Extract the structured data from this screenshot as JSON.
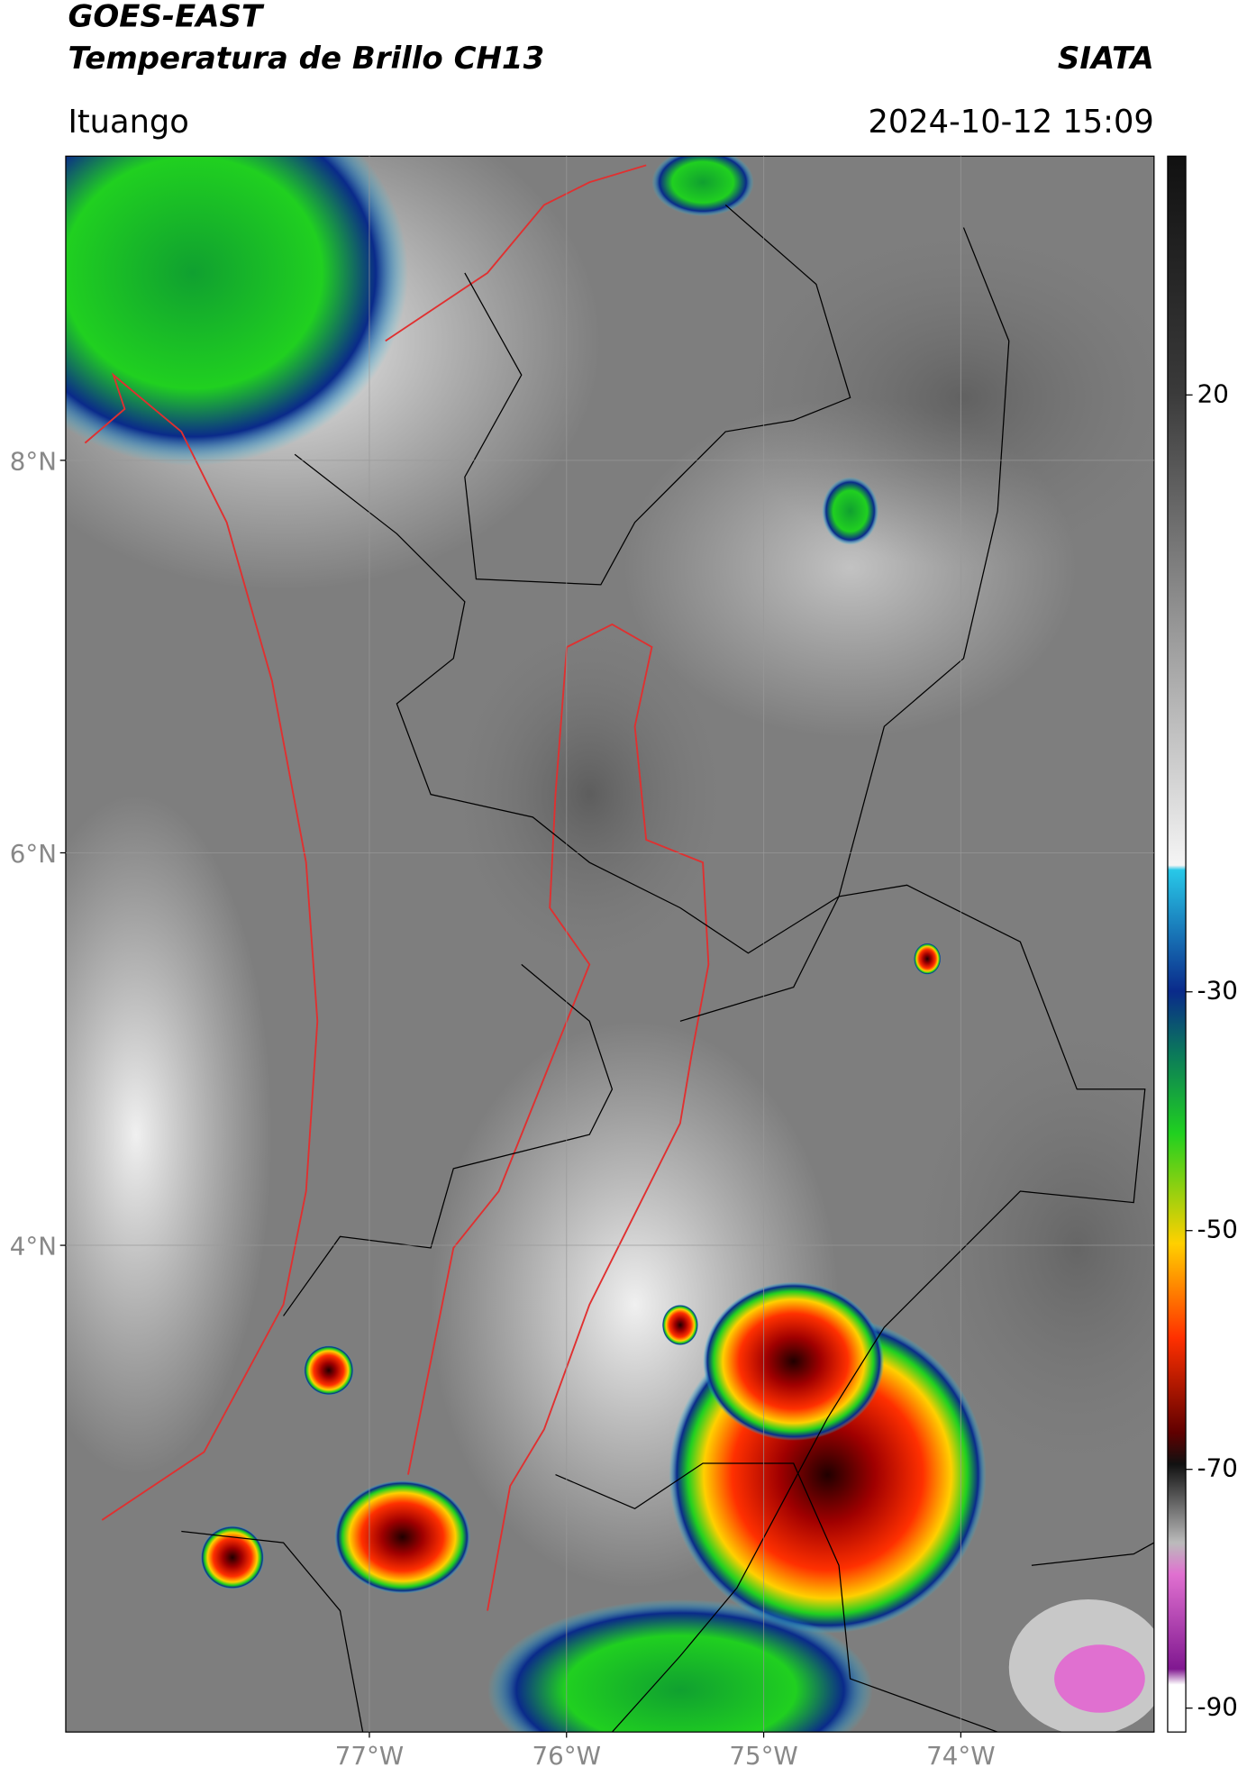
{
  "header": {
    "title_line1": "GOES-EAST",
    "title_line2": "Temperatura de Brillo CH13",
    "brand": "SIATA",
    "location": "Ituango",
    "timestamp": "2024-10-12 15:09"
  },
  "map": {
    "lonlim": [
      -78.54,
      -73.02
    ],
    "latlim": [
      1.52,
      9.55
    ],
    "lat_ticks": [
      {
        "value": 8,
        "label": "8°N"
      },
      {
        "value": 6,
        "label": "6°N"
      },
      {
        "value": 4,
        "label": "4°N"
      }
    ],
    "lon_ticks": [
      {
        "value": -77,
        "label": "77°W"
      },
      {
        "value": -76,
        "label": "76°W"
      },
      {
        "value": -75,
        "label": "75°W"
      },
      {
        "value": -74,
        "label": "74°W"
      }
    ],
    "grid": true
  },
  "colorbar": {
    "lim": [
      -92,
      40
    ],
    "ticks": [
      20,
      -30,
      -50,
      -70,
      -90
    ]
  }
}
